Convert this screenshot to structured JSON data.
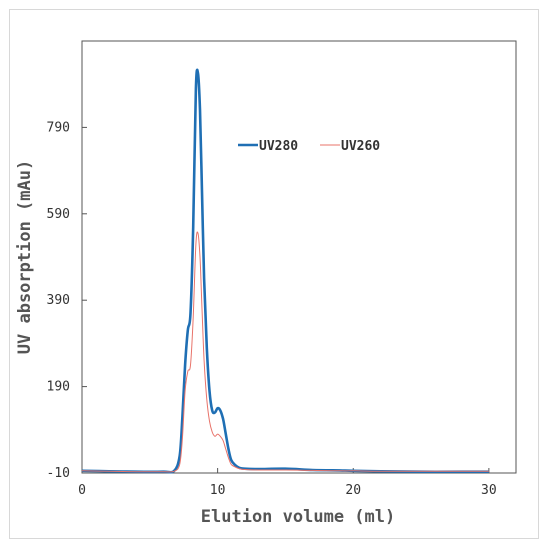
{
  "chart_data": {
    "type": "line",
    "title": "",
    "xlabel": "Elution volume (ml)",
    "ylabel": "UV absorption (mAu)",
    "xlim": [
      0,
      32
    ],
    "ylim": [
      -10,
      990
    ],
    "x_ticks": [
      0,
      10,
      20,
      30
    ],
    "x_tick_labels": [
      "0",
      "10",
      "20",
      "30"
    ],
    "y_ticks": [
      -10,
      190,
      390,
      590,
      790
    ],
    "y_tick_labels": [
      "-10",
      "190",
      "390",
      "590",
      "790"
    ],
    "grid": false,
    "legend_position": "top-right",
    "series": [
      {
        "name": "UV280",
        "color": "#1f6fb4",
        "x": [
          0,
          2,
          4,
          6,
          6.8,
          7.2,
          7.4,
          7.6,
          7.8,
          8.0,
          8.2,
          8.4,
          8.55,
          8.7,
          8.85,
          9.0,
          9.2,
          9.4,
          9.6,
          9.8,
          10.0,
          10.2,
          10.4,
          10.6,
          10.8,
          11.0,
          11.3,
          11.6,
          12.0,
          13,
          15,
          17,
          19,
          20,
          22,
          25,
          28,
          30
        ],
        "y": [
          -5,
          -6,
          -7,
          -7,
          -5,
          30,
          120,
          240,
          320,
          360,
          560,
          880,
          915,
          830,
          640,
          440,
          280,
          180,
          135,
          130,
          140,
          135,
          115,
          80,
          45,
          20,
          8,
          2,
          0,
          -1,
          0,
          -3,
          -4,
          -5,
          -6,
          -7,
          -7,
          -7
        ]
      },
      {
        "name": "UV260",
        "color": "#e8736a",
        "x": [
          0,
          2,
          4,
          6,
          6.8,
          7.2,
          7.4,
          7.6,
          7.8,
          8.0,
          8.2,
          8.4,
          8.55,
          8.7,
          8.85,
          9.0,
          9.2,
          9.4,
          9.6,
          9.8,
          10.0,
          10.2,
          10.4,
          10.6,
          10.8,
          11.0,
          11.3,
          11.6,
          12.0,
          13,
          15,
          17,
          19,
          20,
          22,
          25,
          28,
          30
        ],
        "y": [
          -5,
          -6,
          -7,
          -7,
          -6,
          10,
          70,
          180,
          225,
          240,
          350,
          520,
          545,
          490,
          370,
          250,
          160,
          110,
          85,
          75,
          80,
          75,
          65,
          45,
          25,
          10,
          4,
          0,
          -2,
          -3,
          -3,
          -4,
          -5,
          -5,
          -6,
          -6,
          -6,
          -6
        ]
      }
    ]
  }
}
